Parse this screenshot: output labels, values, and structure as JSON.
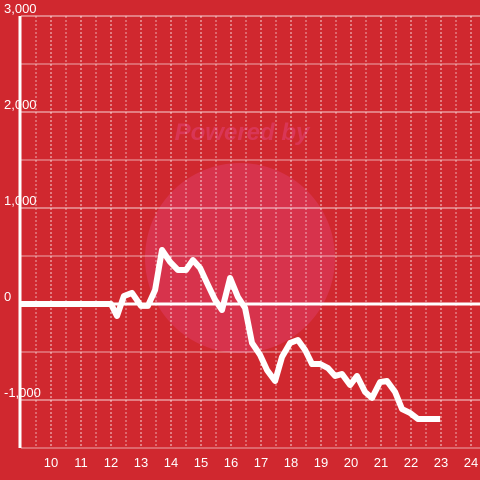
{
  "chart_data": {
    "type": "line",
    "watermark": "Powered by",
    "x": [
      9,
      12.0,
      12.2,
      12.43,
      12.7,
      13.0,
      13.23,
      13.47,
      13.7,
      13.97,
      14.23,
      14.5,
      14.73,
      14.97,
      15.2,
      15.47,
      15.7,
      15.97,
      16.23,
      16.47,
      16.7,
      16.97,
      17.2,
      17.47,
      17.7,
      17.97,
      18.23,
      18.47,
      18.7,
      18.97,
      19.23,
      19.47,
      19.7,
      19.97,
      20.2,
      20.47,
      20.7,
      20.97,
      21.2,
      21.47,
      21.7,
      21.97,
      22.23,
      22.97
    ],
    "series": [
      {
        "color": "#ffffff",
        "values": [
          0,
          0,
          -125,
          83,
          115,
          -20,
          -20,
          146,
          563,
          438,
          354,
          354,
          458,
          375,
          219,
          42,
          -63,
          271,
          73,
          -42,
          -406,
          -531,
          -688,
          -802,
          -552,
          -406,
          -375,
          -479,
          -625,
          -625,
          -667,
          -750,
          -729,
          -844,
          -750,
          -917,
          -979,
          -813,
          -802,
          -917,
          -1094,
          -1135,
          -1198,
          -1198
        ]
      }
    ],
    "xlim": [
      9,
      24.3
    ],
    "xticks": [
      10,
      11,
      12,
      13,
      14,
      15,
      16,
      17,
      18,
      19,
      20,
      21,
      22,
      23,
      24
    ],
    "ylim": [
      -1500,
      3000
    ],
    "yticks": [
      {
        "value": -1000,
        "label": "-1,000"
      },
      0,
      {
        "value": 1000,
        "label": "1,000"
      },
      {
        "value": 2000,
        "label": "2,000"
      },
      {
        "value": 3000,
        "label": "3,000"
      }
    ],
    "minor_yticks": [
      -1500,
      -500,
      500,
      1500,
      2500
    ],
    "minor_xticks": [
      9.5,
      10.5,
      11.5,
      12.5,
      13.5,
      14.5,
      15.5,
      16.5,
      17.5,
      18.5,
      19.5,
      20.5,
      21.5,
      22.5,
      23.5
    ],
    "background": "#d0282f",
    "grid": true
  }
}
